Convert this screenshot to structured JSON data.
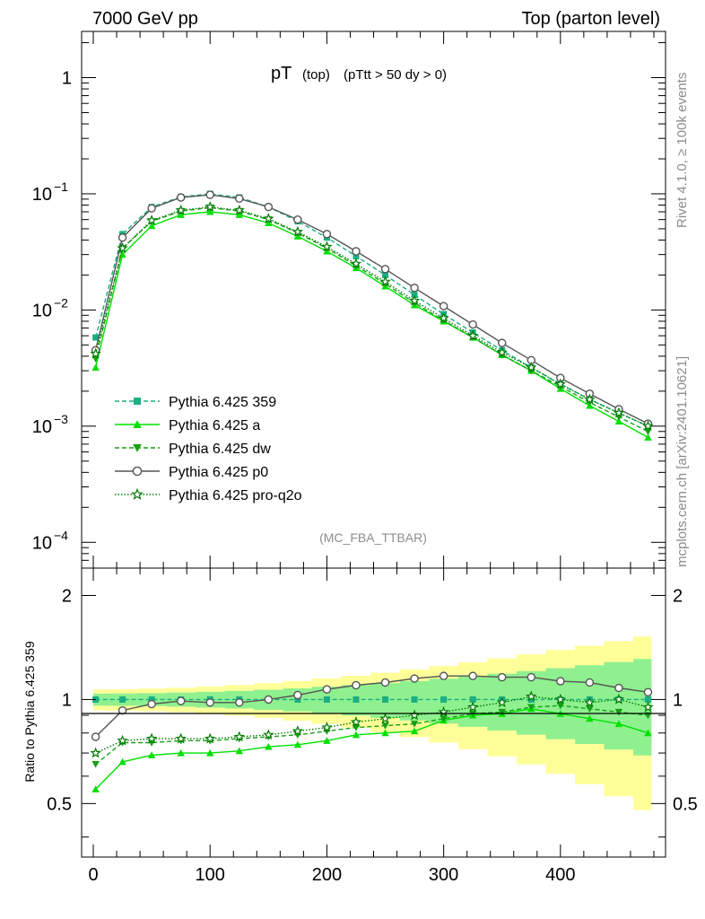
{
  "header": {
    "left": "7000 GeV pp",
    "right": "Top (parton level)"
  },
  "side": {
    "rivet": "Rivet 4.1.0, ≥ 100k events",
    "mcplots": "mcplots.cern.ch [arXiv:2401.10621]"
  },
  "chart_data": {
    "type": "line",
    "title_main": "pT",
    "title_sub": "(top)",
    "title_cuts": "(pTtt > 50 dy > 0)",
    "watermark": "(MC_FBA_TTBAR)",
    "xlabel": "",
    "ylabel": "",
    "ratio_ylabel": "Ratio to Pythia 6.425 359",
    "xlim": [
      -10,
      490
    ],
    "ylim": [
      6e-05,
      2.5
    ],
    "ratio_ylim": [
      0.35,
      2.4
    ],
    "xticks": [
      0,
      100,
      200,
      300,
      400
    ],
    "xtick_labels": [
      "0",
      "100",
      "200",
      "300",
      "400"
    ],
    "yticks": [
      1,
      0.1,
      0.01,
      0.001,
      0.0001
    ],
    "ytick_labels": [
      {
        "base": "1",
        "exp": ""
      },
      {
        "base": "10",
        "exp": "−1"
      },
      {
        "base": "10",
        "exp": "−2"
      },
      {
        "base": "10",
        "exp": "−3"
      },
      {
        "base": "10",
        "exp": "−4"
      }
    ],
    "ratio_yticks": [
      0.5,
      1,
      2
    ],
    "ratio_ytick_labels": [
      "0.5",
      "1",
      "2"
    ],
    "bands": {
      "inner": "#8ff08f",
      "outer": "#ffff99"
    },
    "series": [
      {
        "name": "Pythia 6.425 359",
        "color": "#1aae82",
        "marker": "square",
        "dash": "5,3",
        "x": [
          2,
          25,
          50,
          75,
          100,
          125,
          150,
          175,
          200,
          225,
          250,
          275,
          300,
          325,
          350,
          375,
          400,
          425,
          450,
          475
        ],
        "y": [
          0.0058,
          0.045,
          0.077,
          0.094,
          0.1,
          0.093,
          0.077,
          0.058,
          0.042,
          0.029,
          0.02,
          0.0135,
          0.0092,
          0.0064,
          0.0045,
          0.0032,
          0.0023,
          0.0017,
          0.0013,
          0.001
        ],
        "ratio": [
          1,
          1,
          1,
          1,
          1,
          1,
          1,
          1,
          1,
          1,
          1,
          1,
          1,
          1,
          1,
          1,
          1,
          1,
          1,
          1
        ]
      },
      {
        "name": "Pythia 6.425 a",
        "color": "#00e000",
        "marker": "triangle-up",
        "dash": "",
        "x": [
          2,
          25,
          50,
          75,
          100,
          125,
          150,
          175,
          200,
          225,
          250,
          275,
          300,
          325,
          350,
          375,
          400,
          425,
          450,
          475
        ],
        "y": [
          0.0032,
          0.03,
          0.053,
          0.066,
          0.07,
          0.066,
          0.056,
          0.043,
          0.032,
          0.023,
          0.016,
          0.011,
          0.008,
          0.0058,
          0.0041,
          0.003,
          0.0021,
          0.0015,
          0.0011,
          0.0008
        ],
        "ratio": [
          0.55,
          0.66,
          0.69,
          0.7,
          0.7,
          0.71,
          0.73,
          0.74,
          0.76,
          0.79,
          0.8,
          0.81,
          0.87,
          0.9,
          0.91,
          0.94,
          0.91,
          0.88,
          0.85,
          0.8
        ]
      },
      {
        "name": "Pythia 6.425 dw",
        "color": "#159f15",
        "marker": "triangle-down",
        "dash": "5,3",
        "x": [
          2,
          25,
          50,
          75,
          100,
          125,
          150,
          175,
          200,
          225,
          250,
          275,
          300,
          325,
          350,
          375,
          400,
          425,
          450,
          475
        ],
        "y": [
          0.0038,
          0.034,
          0.058,
          0.071,
          0.076,
          0.071,
          0.06,
          0.046,
          0.034,
          0.024,
          0.0168,
          0.0115,
          0.0081,
          0.0058,
          0.0041,
          0.003,
          0.0022,
          0.0016,
          0.0012,
          0.0009
        ],
        "ratio": [
          0.65,
          0.75,
          0.75,
          0.76,
          0.76,
          0.77,
          0.78,
          0.79,
          0.81,
          0.83,
          0.84,
          0.85,
          0.88,
          0.91,
          0.92,
          0.95,
          0.96,
          0.94,
          0.92,
          0.9
        ]
      },
      {
        "name": "Pythia 6.425 p0",
        "color": "#555555",
        "marker": "circle",
        "dash": "",
        "x": [
          2,
          25,
          50,
          75,
          100,
          125,
          150,
          175,
          200,
          225,
          250,
          275,
          300,
          325,
          350,
          375,
          400,
          425,
          450,
          475
        ],
        "y": [
          0.0045,
          0.042,
          0.075,
          0.093,
          0.098,
          0.091,
          0.077,
          0.06,
          0.045,
          0.032,
          0.0225,
          0.0155,
          0.0108,
          0.0075,
          0.0052,
          0.0037,
          0.0026,
          0.0019,
          0.0014,
          0.00105
        ],
        "ratio": [
          0.78,
          0.93,
          0.97,
          0.99,
          0.98,
          0.98,
          1.0,
          1.03,
          1.07,
          1.1,
          1.12,
          1.15,
          1.17,
          1.17,
          1.16,
          1.16,
          1.13,
          1.12,
          1.08,
          1.05
        ]
      },
      {
        "name": "Pythia 6.425 pro-q2o",
        "color": "#007a00",
        "marker": "star",
        "dash": "1.5,2",
        "x": [
          2,
          25,
          50,
          75,
          100,
          125,
          150,
          175,
          200,
          225,
          250,
          275,
          300,
          325,
          350,
          375,
          400,
          425,
          450,
          475
        ],
        "y": [
          0.0042,
          0.034,
          0.059,
          0.072,
          0.077,
          0.072,
          0.061,
          0.047,
          0.035,
          0.025,
          0.0175,
          0.012,
          0.0085,
          0.006,
          0.0043,
          0.0032,
          0.0023,
          0.0017,
          0.0013,
          0.001
        ],
        "ratio": [
          0.7,
          0.76,
          0.77,
          0.77,
          0.77,
          0.78,
          0.79,
          0.81,
          0.83,
          0.86,
          0.88,
          0.9,
          0.92,
          0.95,
          0.98,
          1.02,
          1.0,
          0.98,
          1.0,
          0.95
        ]
      }
    ]
  }
}
